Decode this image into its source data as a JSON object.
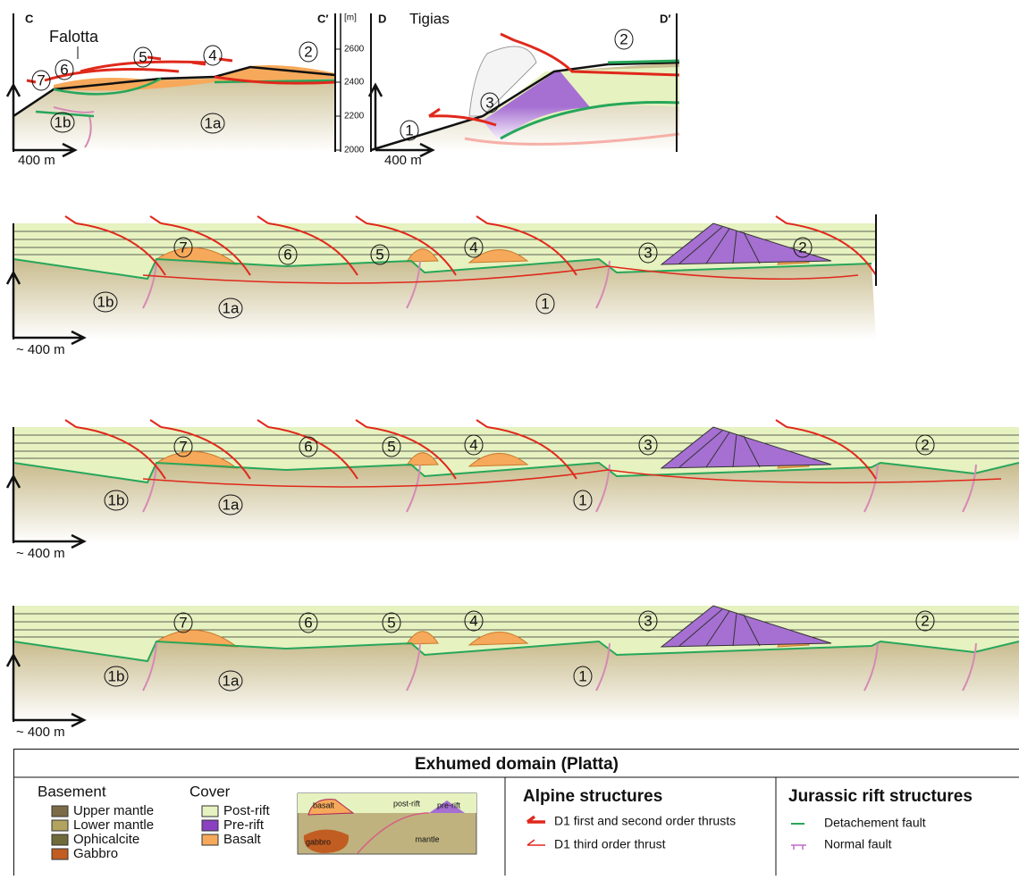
{
  "section_cc": {
    "left": "C",
    "right": "C′",
    "locality": "Falotta",
    "units": [
      "7",
      "6",
      "5",
      "4",
      "2",
      "1b",
      "1a"
    ],
    "scale": "400 m"
  },
  "elevation_axis": {
    "unit": "[m]",
    "ticks": [
      "2600",
      "2400",
      "2200",
      "2000"
    ]
  },
  "section_dd": {
    "left": "D",
    "right": "D′",
    "locality": "Tigias",
    "units": [
      "2",
      "3",
      "1"
    ],
    "scale": "400 m"
  },
  "restorations": [
    {
      "units": [
        "7",
        "6",
        "5",
        "4",
        "3",
        "2",
        "1b",
        "1a",
        "1"
      ],
      "scale": "~ 400 m"
    },
    {
      "units": [
        "7",
        "6",
        "5",
        "4",
        "3",
        "2",
        "1b",
        "1a",
        "1"
      ],
      "scale": "~ 400 m"
    },
    {
      "units": [
        "7",
        "6",
        "5",
        "4",
        "3",
        "2",
        "1b",
        "1a",
        "1"
      ],
      "scale": "~ 400 m"
    }
  ],
  "legend": {
    "title": "Exhumed domain (Platta)",
    "basement": {
      "heading": "Basement",
      "items": [
        "Upper mantle",
        "Lower mantle",
        "Ophicalcite",
        "Gabbro"
      ]
    },
    "cover": {
      "heading": "Cover",
      "items": [
        "Post-rift",
        "Pre-rift",
        "Basalt"
      ]
    },
    "inset": [
      "basalt",
      "post-rift",
      "pre-rift",
      "gabbro",
      "mantle"
    ],
    "alpine": {
      "heading": "Alpine structures",
      "items": [
        "D1 first and second order thrusts",
        "D1 third order thrust"
      ]
    },
    "jurassic": {
      "heading": "Jurassic rift structures",
      "items": [
        "Detachement fault",
        "Normal fault"
      ]
    }
  }
}
